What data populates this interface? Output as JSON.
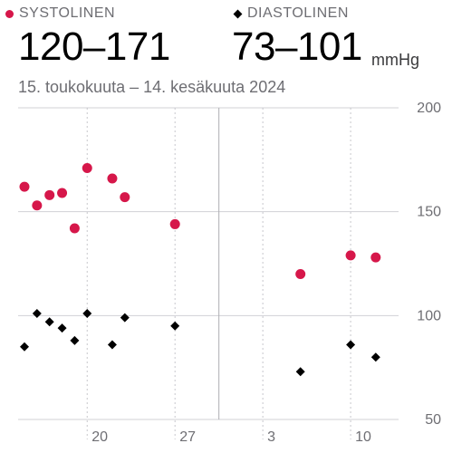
{
  "legend": {
    "systolic_label": "SYSTOLINEN",
    "diastolic_label": "DIASTOLINEN"
  },
  "summary": {
    "systolic_range": "120–171",
    "diastolic_range": "73–101",
    "unit": "mmHg",
    "date_range": "15. toukokuuta – 14. kesäkuuta 2024"
  },
  "colors": {
    "systolic": "#d6174a",
    "diastolic": "#000000"
  },
  "chart_data": {
    "type": "scatter",
    "x_axis": {
      "first_day": 15,
      "last_day": 45,
      "ticks": [
        {
          "label": "20",
          "day": 20
        },
        {
          "label": "27",
          "day": 27
        },
        {
          "label": "3",
          "day": 34
        },
        {
          "label": "10",
          "day": 41
        }
      ],
      "week_start_solid_day": 30.5
    },
    "y_axis": {
      "min": 50,
      "max": 200,
      "ticks": [
        200,
        150,
        100,
        50
      ],
      "position": "right"
    },
    "series": [
      {
        "name": "SYSTOLINEN",
        "marker": "circle",
        "points": [
          {
            "day": 15,
            "value": 162
          },
          {
            "day": 16,
            "value": 153
          },
          {
            "day": 17,
            "value": 158
          },
          {
            "day": 18,
            "value": 159
          },
          {
            "day": 19,
            "value": 142
          },
          {
            "day": 20,
            "value": 171
          },
          {
            "day": 22,
            "value": 166
          },
          {
            "day": 23,
            "value": 157
          },
          {
            "day": 27,
            "value": 144
          },
          {
            "day": 37,
            "value": 120
          },
          {
            "day": 41,
            "value": 129
          },
          {
            "day": 43,
            "value": 128
          }
        ]
      },
      {
        "name": "DIASTOLINEN",
        "marker": "diamond",
        "points": [
          {
            "day": 15,
            "value": 85
          },
          {
            "day": 16,
            "value": 101
          },
          {
            "day": 17,
            "value": 97
          },
          {
            "day": 18,
            "value": 94
          },
          {
            "day": 19,
            "value": 88
          },
          {
            "day": 20,
            "value": 101
          },
          {
            "day": 22,
            "value": 86
          },
          {
            "day": 23,
            "value": 99
          },
          {
            "day": 27,
            "value": 95
          },
          {
            "day": 37,
            "value": 73
          },
          {
            "day": 41,
            "value": 86
          },
          {
            "day": 43,
            "value": 80
          }
        ]
      }
    ]
  }
}
